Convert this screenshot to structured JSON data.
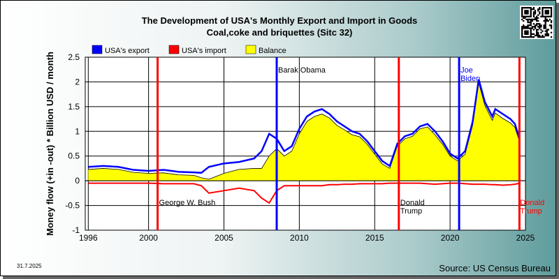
{
  "chart_data": {
    "type": "area",
    "title": "The Development of USA's Monthly Export and Import in Goods",
    "subtitle": "Coal,coke and briquettes (Sitc 32)",
    "ylabel": "Money flow (+in -out) * Billion USD / month",
    "xlabel": "",
    "xlim": [
      1995.8,
      2025.0
    ],
    "ylim": [
      -1,
      2.5
    ],
    "x_ticks": [
      "1996",
      "2000",
      "2005",
      "2010",
      "2015",
      "2020",
      "2025"
    ],
    "y_ticks": [
      "2.5",
      "2",
      "1.5",
      "1",
      "0.5",
      "0",
      "-0.5",
      "-1"
    ],
    "grid": true,
    "legend_position": "top-left",
    "x": [
      1996.0,
      1997.0,
      1998.0,
      1999.0,
      2000.0,
      2001.0,
      2002.0,
      2003.0,
      2003.5,
      2004.0,
      2005.0,
      2006.0,
      2007.0,
      2007.5,
      2008.0,
      2008.5,
      2009.0,
      2009.5,
      2010.0,
      2010.5,
      2011.0,
      2011.5,
      2012.0,
      2012.5,
      2013.0,
      2013.5,
      2014.0,
      2014.5,
      2015.0,
      2015.5,
      2016.0,
      2016.5,
      2017.0,
      2017.5,
      2018.0,
      2018.5,
      2019.0,
      2019.5,
      2020.0,
      2020.5,
      2021.0,
      2021.5,
      2021.9,
      2022.3,
      2022.8,
      2023.0,
      2023.5,
      2024.0,
      2024.3,
      2024.6
    ],
    "series": [
      {
        "name": "USA's export",
        "color": "#0000ff",
        "values": [
          0.28,
          0.3,
          0.28,
          0.22,
          0.2,
          0.22,
          0.18,
          0.17,
          0.16,
          0.28,
          0.35,
          0.38,
          0.45,
          0.6,
          0.95,
          0.85,
          0.6,
          0.7,
          1.05,
          1.3,
          1.4,
          1.45,
          1.35,
          1.2,
          1.1,
          1.0,
          0.95,
          0.8,
          0.6,
          0.4,
          0.3,
          0.75,
          0.9,
          0.95,
          1.1,
          1.15,
          1.0,
          0.8,
          0.55,
          0.45,
          0.6,
          1.2,
          2.05,
          1.6,
          1.3,
          1.45,
          1.35,
          1.25,
          1.15,
          0.85
        ]
      },
      {
        "name": "USA's import",
        "color": "#ff0000",
        "values": [
          -0.05,
          -0.05,
          -0.05,
          -0.05,
          -0.05,
          -0.06,
          -0.06,
          -0.06,
          -0.1,
          -0.25,
          -0.2,
          -0.15,
          -0.2,
          -0.35,
          -0.45,
          -0.2,
          -0.1,
          -0.1,
          -0.1,
          -0.1,
          -0.1,
          -0.1,
          -0.08,
          -0.08,
          -0.07,
          -0.07,
          -0.06,
          -0.06,
          -0.06,
          -0.06,
          -0.05,
          -0.05,
          -0.05,
          -0.05,
          -0.05,
          -0.06,
          -0.07,
          -0.06,
          -0.05,
          -0.05,
          -0.06,
          -0.07,
          -0.07,
          -0.07,
          -0.08,
          -0.08,
          -0.09,
          -0.08,
          -0.07,
          -0.05
        ]
      },
      {
        "name": "Balance",
        "color": "#ffff00",
        "values": [
          0.23,
          0.25,
          0.23,
          0.17,
          0.15,
          0.16,
          0.12,
          0.11,
          0.06,
          0.03,
          0.15,
          0.23,
          0.25,
          0.25,
          0.5,
          0.65,
          0.5,
          0.6,
          0.95,
          1.2,
          1.3,
          1.35,
          1.27,
          1.12,
          1.03,
          0.93,
          0.89,
          0.74,
          0.54,
          0.34,
          0.25,
          0.7,
          0.85,
          0.9,
          1.05,
          1.09,
          0.93,
          0.74,
          0.5,
          0.4,
          0.54,
          1.13,
          1.98,
          1.53,
          1.22,
          1.37,
          1.26,
          1.17,
          1.08,
          0.8
        ]
      }
    ],
    "annotations": [
      {
        "text": "George W. Bush",
        "x": 2000.6,
        "color": "#ff0000"
      },
      {
        "text": "Barak Obama",
        "x": 2008.5,
        "color": "#0000ff"
      },
      {
        "text": "Donald",
        "text2": "Trump",
        "x": 2016.6,
        "color": "#ff0000"
      },
      {
        "text": "Joe",
        "text2": "Biden",
        "x": 2020.6,
        "color": "#0000ff"
      },
      {
        "text": "Donald",
        "text2": "Trump",
        "x": 2024.6,
        "color": "#ff0000"
      }
    ]
  },
  "source": "Source: US Census Bureau",
  "date": "31.7.2025",
  "qr": "qr-code"
}
